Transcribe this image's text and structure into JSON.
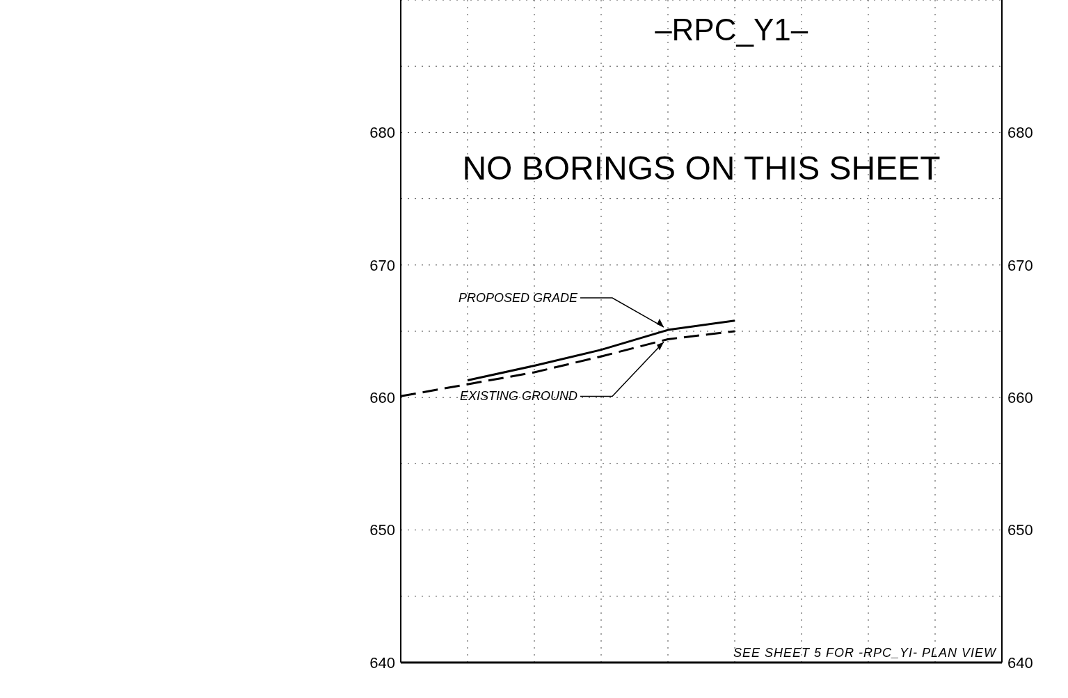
{
  "chart_data": {
    "type": "line",
    "title": "–RPC_Y1–",
    "annotations": [
      "NO BORINGS ON THIS SHEET",
      "SEE SHEET 5 FOR -RPC_YI- PLAN VIEW"
    ],
    "categories": [
      null,
      null,
      null,
      null,
      null,
      null,
      null,
      null,
      null,
      null
    ],
    "series": [
      {
        "name": "PROPOSED GRADE",
        "color": "#000000",
        "line_style": "solid",
        "values": [
          null,
          661.3,
          662.4,
          663.6,
          665.1,
          665.8,
          null,
          null,
          null,
          null
        ]
      },
      {
        "name": "EXISTING GROUND",
        "color": "#000000",
        "line_style": "dashed",
        "values": [
          660.1,
          661.0,
          661.9,
          663.1,
          664.4,
          665.0,
          null,
          null,
          null,
          null
        ]
      }
    ],
    "ylim": [
      640,
      690
    ],
    "yticks": [
      640,
      {
        "value": 645,
        "label": null
      },
      650,
      {
        "value": 655,
        "label": null
      },
      660,
      {
        "value": 665,
        "label": null
      },
      670,
      {
        "value": 675,
        "label": null
      },
      680,
      {
        "value": 685,
        "label": null
      }
    ],
    "y2lim": [
      640,
      690
    ],
    "y2ticks": [
      640,
      650,
      660,
      670,
      680
    ],
    "grid": true,
    "legend": false,
    "tick_labels": "y"
  }
}
